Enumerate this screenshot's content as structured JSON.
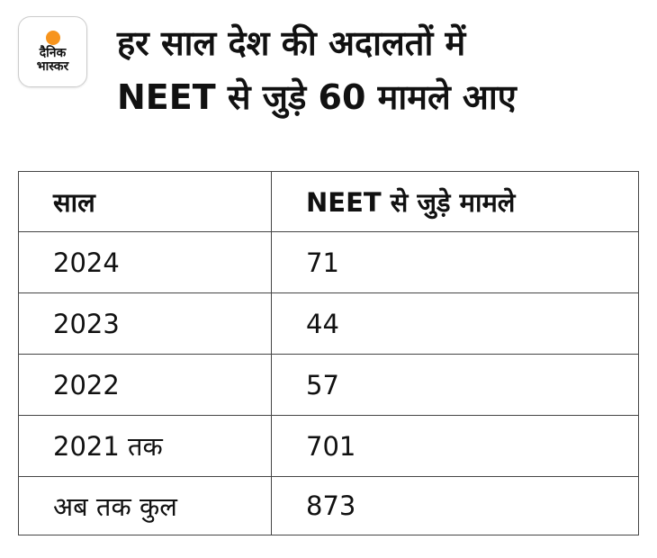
{
  "logo": {
    "line1": "दैनिक",
    "line2": "भास्कर",
    "accent": "#f7941d"
  },
  "title": {
    "line1": "हर साल देश की अदालतों में",
    "line2": "NEET से जुड़े 60 मामले आए"
  },
  "table": {
    "headers": [
      "साल",
      "NEET से जुड़े मामले"
    ],
    "rows": [
      [
        "2024",
        "71"
      ],
      [
        "2023",
        "44"
      ],
      [
        "2022",
        "57"
      ],
      [
        "2021 तक",
        "701"
      ],
      [
        "अब तक कुल",
        "873"
      ]
    ]
  }
}
